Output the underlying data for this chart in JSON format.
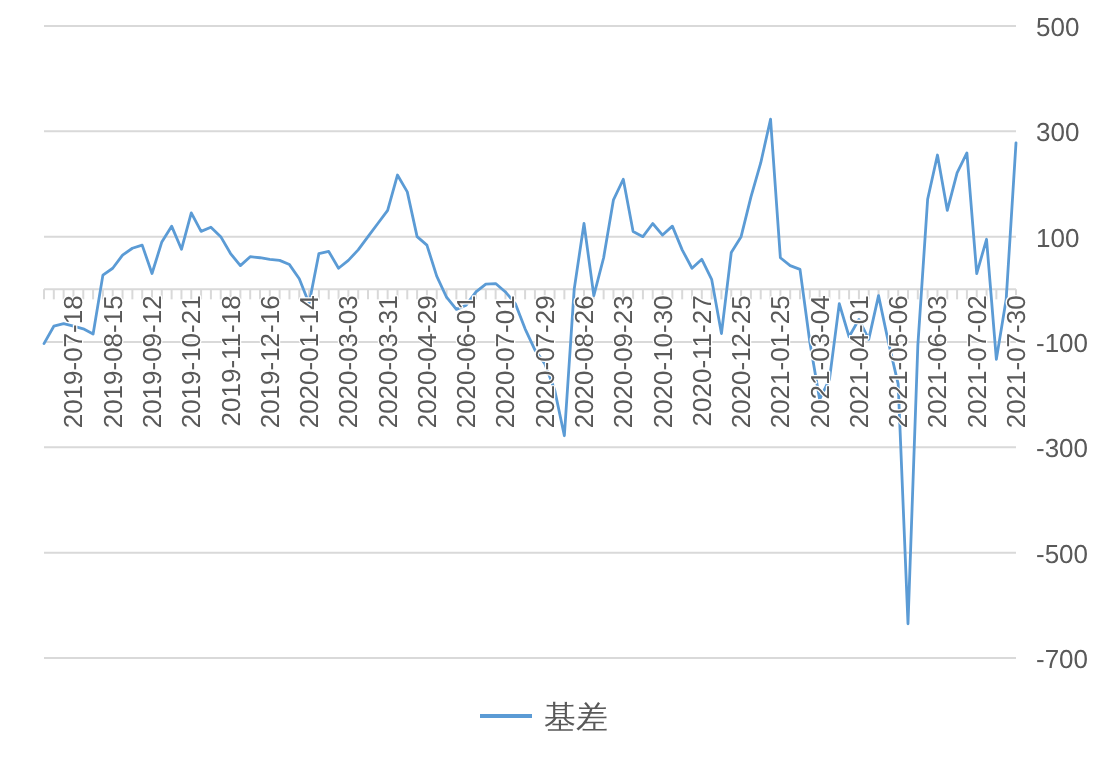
{
  "chart_data": {
    "type": "line",
    "categories": [
      null,
      null,
      null,
      "2019-07-18",
      null,
      null,
      null,
      "2019-08-15",
      null,
      null,
      null,
      "2019-09-12",
      null,
      null,
      null,
      "2019-10-21",
      null,
      null,
      null,
      "2019-11-18",
      null,
      null,
      null,
      "2019-12-16",
      null,
      null,
      null,
      "2020-01-14",
      null,
      null,
      null,
      "2020-03-03",
      null,
      null,
      null,
      "2020-03-31",
      null,
      null,
      null,
      "2020-04-29",
      null,
      null,
      null,
      "2020-06-01",
      null,
      null,
      null,
      "2020-07-01",
      null,
      null,
      null,
      "2020-07-29",
      null,
      null,
      null,
      "2020-08-26",
      null,
      null,
      null,
      "2020-09-23",
      null,
      null,
      null,
      "2020-10-30",
      null,
      null,
      null,
      "2020-11-27",
      null,
      null,
      null,
      "2020-12-25",
      null,
      null,
      null,
      "2021-01-25",
      null,
      null,
      null,
      "2021-03-04",
      null,
      null,
      null,
      "2021-04-01",
      null,
      null,
      null,
      "2021-05-06",
      null,
      null,
      null,
      "2021-06-03",
      null,
      null,
      null,
      "2021-07-02",
      null,
      null,
      null,
      "2021-07-30"
    ],
    "series": [
      {
        "name": "基差",
        "color": "#5b9bd5",
        "values": [
          -103,
          -70,
          -65,
          -70,
          -75,
          -85,
          27,
          40,
          65,
          78,
          84,
          30,
          90,
          120,
          76,
          145,
          110,
          118,
          100,
          68,
          45,
          62,
          60,
          57,
          55,
          47,
          20,
          -27,
          68,
          72,
          40,
          55,
          75,
          100,
          125,
          150,
          217,
          185,
          100,
          84,
          25,
          -15,
          -38,
          -30,
          -5,
          10,
          11,
          -5,
          -27,
          -75,
          -115,
          -141,
          -190,
          -278,
          0,
          125,
          -12,
          60,
          170,
          209,
          110,
          100,
          125,
          103,
          120,
          75,
          40,
          57,
          19,
          -84,
          70,
          100,
          175,
          240,
          323,
          60,
          45,
          38,
          -100,
          -209,
          -171,
          -27,
          -90,
          -57,
          -95,
          -12,
          -100,
          -180,
          -635,
          -107,
          171,
          255,
          150,
          221,
          259,
          30,
          95,
          -133,
          -19,
          278
        ]
      }
    ],
    "ylim": [
      -700,
      500
    ],
    "yticks": [
      -700,
      -500,
      -300,
      -100,
      100,
      300,
      500
    ],
    "grid": "y",
    "legend": "bottom",
    "marker": "none"
  }
}
